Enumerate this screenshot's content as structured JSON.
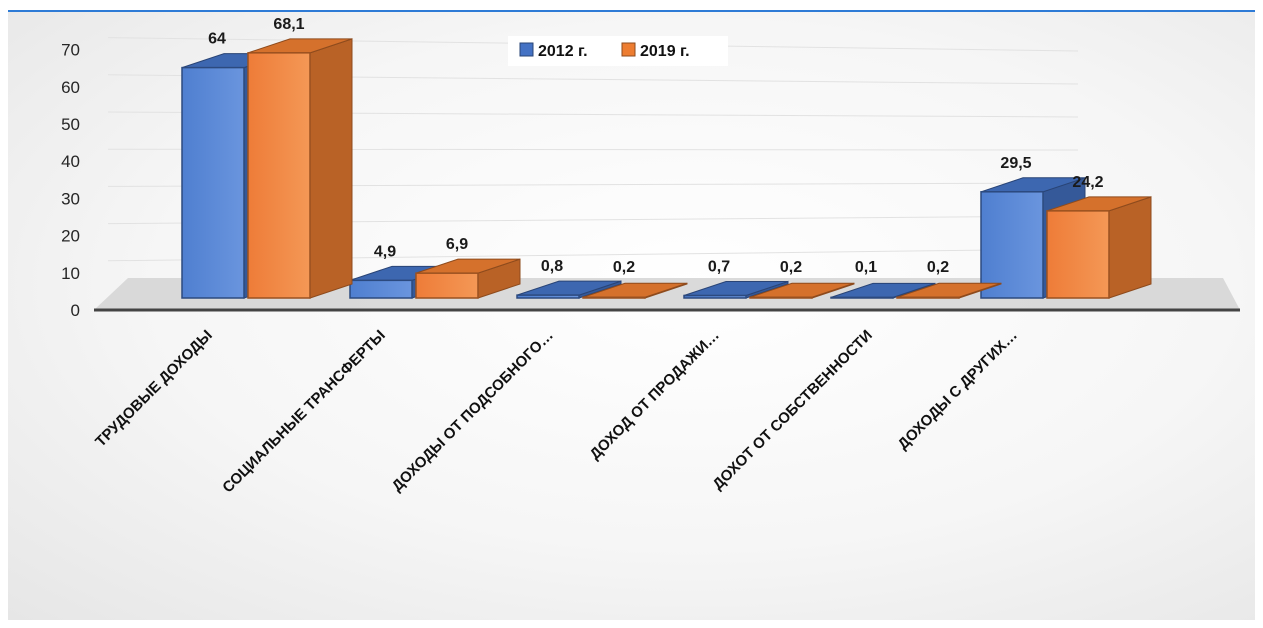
{
  "chart_data": {
    "type": "bar",
    "title": "",
    "xlabel": "",
    "ylabel": "",
    "ylim": [
      0,
      70
    ],
    "yticks": [
      0,
      10,
      20,
      30,
      40,
      50,
      60,
      70
    ],
    "grid": true,
    "legend_position": "top-center",
    "categories": [
      "ТРУДОВЫЕ ДОХОДЫ",
      "СОЦИАЛЬНЫЕ ТРАНСФЕРТЫ",
      "ДОХОДЫ ОТ ПОДСОБНОГО…",
      "ДОХОД ОТ ПРОДАЖИ…",
      "ДОХОТ ОТ СОБСТВЕННОСТИ",
      "ДОХОДЫ С ДРУГИХ…"
    ],
    "series": [
      {
        "name": "2012 г.",
        "color": "#4472c4",
        "values": [
          64,
          4.9,
          0.8,
          0.7,
          0.1,
          29.5
        ],
        "labels": [
          "64",
          "4,9",
          "0,8",
          "0,7",
          "0,1",
          "29,5"
        ]
      },
      {
        "name": "2019 г.",
        "color": "#ed7d31",
        "values": [
          68.1,
          6.9,
          0.2,
          0.2,
          0.2,
          24.2
        ],
        "labels": [
          "68,1",
          "6,9",
          "0,2",
          "0,2",
          "0,2",
          "24,2"
        ]
      }
    ]
  }
}
